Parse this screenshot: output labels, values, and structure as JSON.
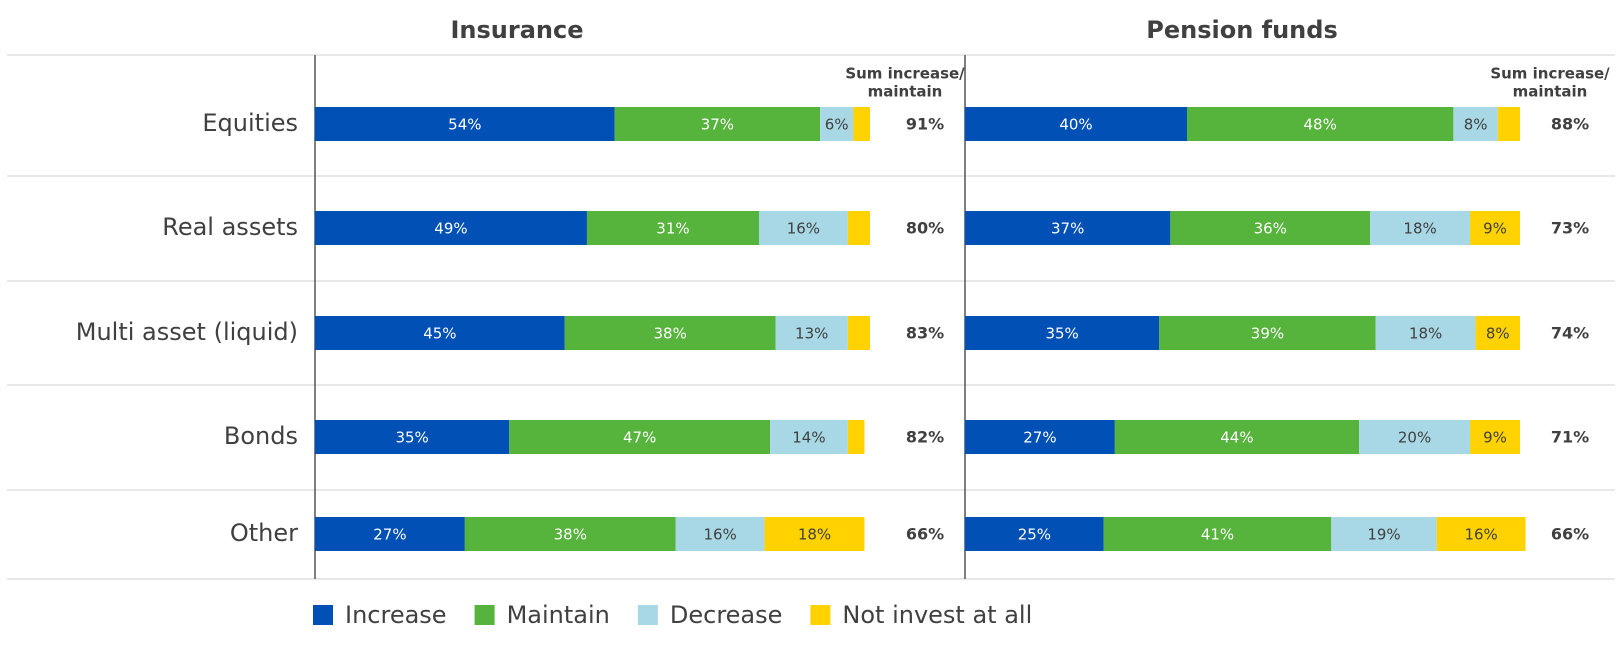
{
  "chart_data": {
    "type": "stacked-barh",
    "categories": [
      "Equities",
      "Real assets",
      "Multi asset (liquid)",
      "Bonds",
      "Other"
    ],
    "sum_title": [
      "Sum increase/",
      "maintain"
    ],
    "xlim": [
      0,
      100
    ],
    "series": [
      {
        "name": "Increase",
        "color": "#0050b5",
        "label_color": "#ffffff"
      },
      {
        "name": "Maintain",
        "color": "#56b33b",
        "label_color": "#ffffff"
      },
      {
        "name": "Decrease",
        "color": "#a8d8e5",
        "label_color": "#404040"
      },
      {
        "name": "Not invest at all",
        "color": "#ffd200",
        "label_color": "#404040"
      }
    ],
    "panels": [
      {
        "title": "Insurance",
        "values": [
          [
            54,
            37,
            6,
            3
          ],
          [
            49,
            31,
            16,
            4
          ],
          [
            45,
            38,
            13,
            4
          ],
          [
            35,
            47,
            14,
            3
          ],
          [
            27,
            38,
            16,
            18
          ]
        ],
        "value_labels": [
          [
            "54%",
            "37%",
            "6%",
            null
          ],
          [
            "49%",
            "31%",
            "16%",
            null
          ],
          [
            "45%",
            "38%",
            "13%",
            null
          ],
          [
            "35%",
            "47%",
            "14%",
            null
          ],
          [
            "27%",
            "38%",
            "16%",
            "18%"
          ]
        ],
        "sum_labels": [
          "91%",
          "80%",
          "83%",
          "82%",
          "66%"
        ]
      },
      {
        "title": "Pension funds",
        "values": [
          [
            40,
            48,
            8,
            4
          ],
          [
            37,
            36,
            18,
            9
          ],
          [
            35,
            39,
            18,
            8
          ],
          [
            27,
            44,
            20,
            9
          ],
          [
            25,
            41,
            19,
            16
          ]
        ],
        "value_labels": [
          [
            "40%",
            "48%",
            "8%",
            null
          ],
          [
            "37%",
            "36%",
            "18%",
            "9%"
          ],
          [
            "35%",
            "39%",
            "18%",
            "8%"
          ],
          [
            "27%",
            "44%",
            "20%",
            "9%"
          ],
          [
            "25%",
            "41%",
            "19%",
            "16%"
          ]
        ],
        "sum_labels": [
          "88%",
          "73%",
          "74%",
          "71%",
          "66%"
        ]
      }
    ]
  }
}
